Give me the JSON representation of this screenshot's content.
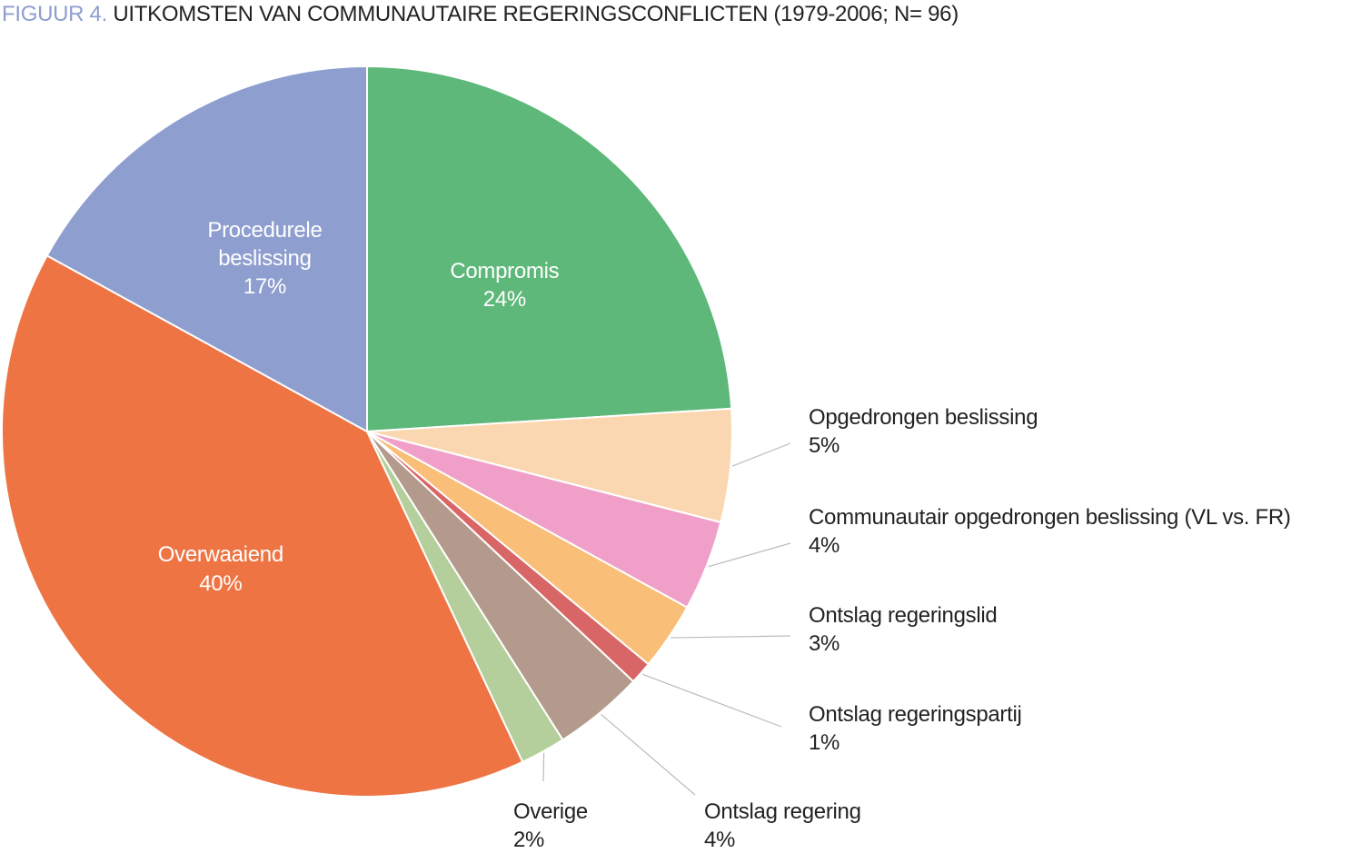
{
  "chart_data": {
    "type": "pie",
    "figure_label": "FIGUUR 4.",
    "title": "UITKOMSTEN VAN COMMUNAUTAIRE REGERINGSCONFLICTEN (1979-2006; N= 96)",
    "categories": [
      "Compromis",
      "Opgedrongen beslissing",
      "Communautair opgedrongen beslissing (VL vs. FR)",
      "Ontslag regeringslid",
      "Ontslag regeringspartij",
      "Ontslag regering",
      "Overige",
      "Overwaaiend",
      "Procedurele beslissing"
    ],
    "values": [
      24,
      5,
      4,
      3,
      1,
      4,
      2,
      40,
      17
    ],
    "value_labels": [
      "24%",
      "5%",
      "4%",
      "3%",
      "1%",
      "4%",
      "2%",
      "40%",
      "17%"
    ],
    "colors": [
      "#5eb87a",
      "#fad7b0",
      "#f0a0c8",
      "#f9be78",
      "#d96666",
      "#b39a8c",
      "#b5cf9c",
      "#ee7444",
      "#8e9ecf"
    ]
  }
}
